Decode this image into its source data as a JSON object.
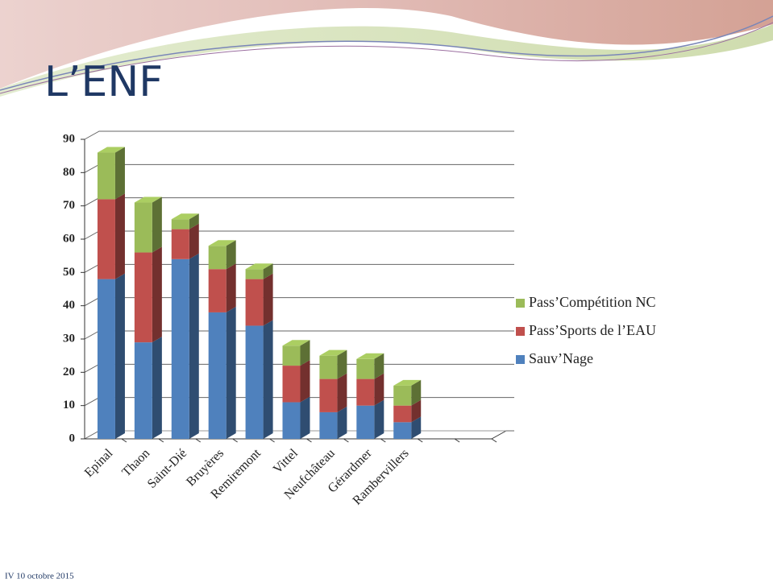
{
  "title": "L’ENF",
  "footer": "IV 10 octobre 2015",
  "chart_data": {
    "type": "bar3d_stacked",
    "categories": [
      "Epinal",
      "Thaon",
      "Saint-Dié",
      "Bruyères",
      "Remiremont",
      "Vittel",
      "Neufchâteau",
      "Gérardmer",
      "Rambervillers",
      null,
      null
    ],
    "series": [
      {
        "name": "Sauv’Nage",
        "color": "#4f81bd",
        "values": [
          48,
          29,
          54,
          38,
          34,
          11,
          8,
          10,
          5,
          null,
          null
        ]
      },
      {
        "name": "Pass’Sports de l’EAU",
        "color": "#c0504d",
        "values": [
          24,
          27,
          9,
          13,
          14,
          11,
          10,
          8,
          5,
          null,
          null
        ]
      },
      {
        "name": "Pass’Compétition NC",
        "color": "#9bbb59",
        "values": [
          14,
          15,
          3,
          7,
          3,
          6,
          7,
          6,
          6,
          null,
          null
        ]
      }
    ],
    "ylim": [
      0,
      90
    ],
    "yticks": [
      0,
      10,
      20,
      30,
      40,
      50,
      60,
      70,
      80,
      90
    ],
    "grid": true,
    "legend": "right"
  }
}
